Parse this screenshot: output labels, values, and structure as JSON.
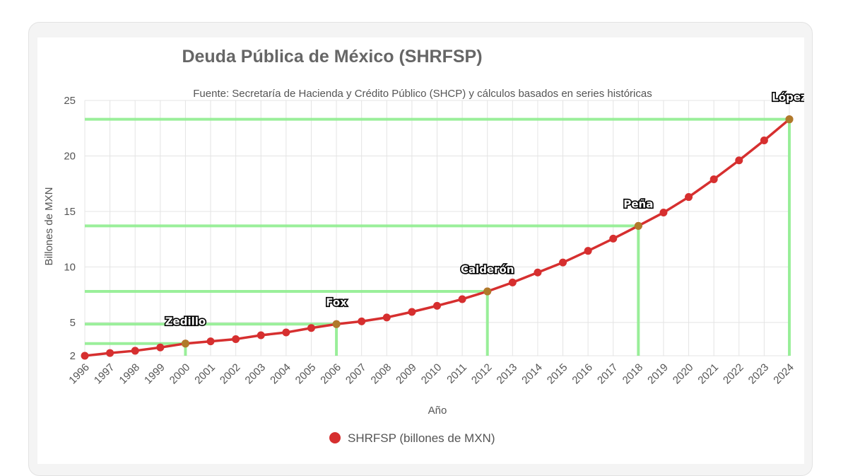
{
  "chart_data": {
    "type": "line",
    "title": "Deuda Pública de México (SHRFSP)",
    "subtitle": "Fuente: Secretaría de Hacienda y Crédito Público (SHCP) y cálculos basados en series históricas",
    "xlabel": "Año",
    "ylabel": "Billones de MXN",
    "ylim": [
      2,
      25
    ],
    "y_ticks": [
      2,
      5,
      10,
      15,
      20,
      25
    ],
    "grid": true,
    "legend_position": "bottom",
    "categories": [
      "1996",
      "1997",
      "1998",
      "1999",
      "2000",
      "2001",
      "2002",
      "2003",
      "2004",
      "2005",
      "2006",
      "2007",
      "2008",
      "2009",
      "2010",
      "2011",
      "2012",
      "2013",
      "2014",
      "2015",
      "2016",
      "2017",
      "2018",
      "2019",
      "2020",
      "2021",
      "2022",
      "2023",
      "2024"
    ],
    "series": [
      {
        "name": "SHRFSP (billones de MXN)",
        "color": "#d62f2f",
        "values": [
          2.0,
          2.25,
          2.45,
          2.75,
          3.1,
          3.3,
          3.5,
          3.85,
          4.1,
          4.5,
          4.85,
          5.1,
          5.45,
          5.95,
          6.5,
          7.1,
          7.8,
          8.6,
          9.5,
          10.4,
          11.45,
          12.55,
          13.7,
          14.9,
          16.3,
          17.9,
          19.6,
          21.4,
          23.3
        ]
      }
    ],
    "annotations": [
      {
        "label": "Zedillo",
        "x": "2000",
        "y": 3.1
      },
      {
        "label": "Fox",
        "x": "2006",
        "y": 4.85
      },
      {
        "label": "Calderón",
        "x": "2012",
        "y": 7.8
      },
      {
        "label": "Peña",
        "x": "2018",
        "y": 13.7
      },
      {
        "label": "López",
        "x": "2024",
        "y": 23.3
      }
    ],
    "guide_color": "#90ee90",
    "grid_color": "#e4e4e4",
    "text_color": "#666666"
  }
}
